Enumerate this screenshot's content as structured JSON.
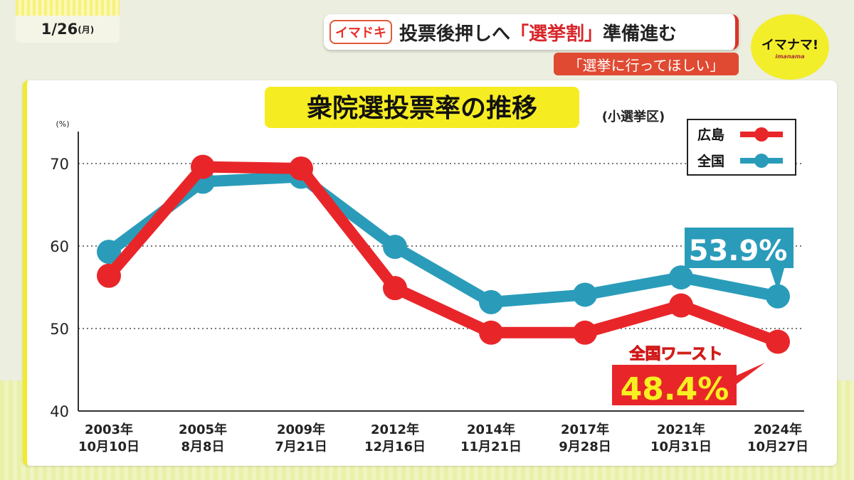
{
  "header": {
    "date": "1/26",
    "weekday": "(月)",
    "corner_logo": "イマドキ",
    "headline_pre": "投票後押しへ",
    "headline_red": "「選挙割」",
    "headline_post": "準備進む",
    "subheadline": "「選挙に行ってほしい」",
    "show_logo": "イマナマ!",
    "show_logo_sub": "imanama"
  },
  "chart_data": {
    "type": "line",
    "title": "衆院選投票率の推移",
    "subtitle": "(小選挙区)",
    "ylabel": "(%)",
    "ylim": [
      40,
      70
    ],
    "yticks": [
      "40",
      "50",
      "60",
      "70"
    ],
    "grid": true,
    "legend_position": "top-right",
    "categories": [
      [
        "2003年",
        "10月10日"
      ],
      [
        "2005年",
        "8月8日"
      ],
      [
        "2009年",
        "7月21日"
      ],
      [
        "2012年",
        "12月16日"
      ],
      [
        "2014年",
        "11月21日"
      ],
      [
        "2017年",
        "9月28日"
      ],
      [
        "2021年",
        "10月31日"
      ],
      [
        "2024年",
        "10月27日"
      ]
    ],
    "series": [
      {
        "name": "広島",
        "color": "#e8262a",
        "values": [
          56.4,
          69.6,
          69.4,
          54.9,
          49.5,
          49.5,
          52.8,
          48.4
        ]
      },
      {
        "name": "全国",
        "color": "#2a9cba",
        "values": [
          59.3,
          67.8,
          68.4,
          59.9,
          53.2,
          54.1,
          56.2,
          53.9
        ]
      }
    ],
    "annotations": {
      "national_last": "53.9%",
      "hiroshima_tag": "全国ワースト",
      "hiroshima_last": "48.4%"
    }
  }
}
